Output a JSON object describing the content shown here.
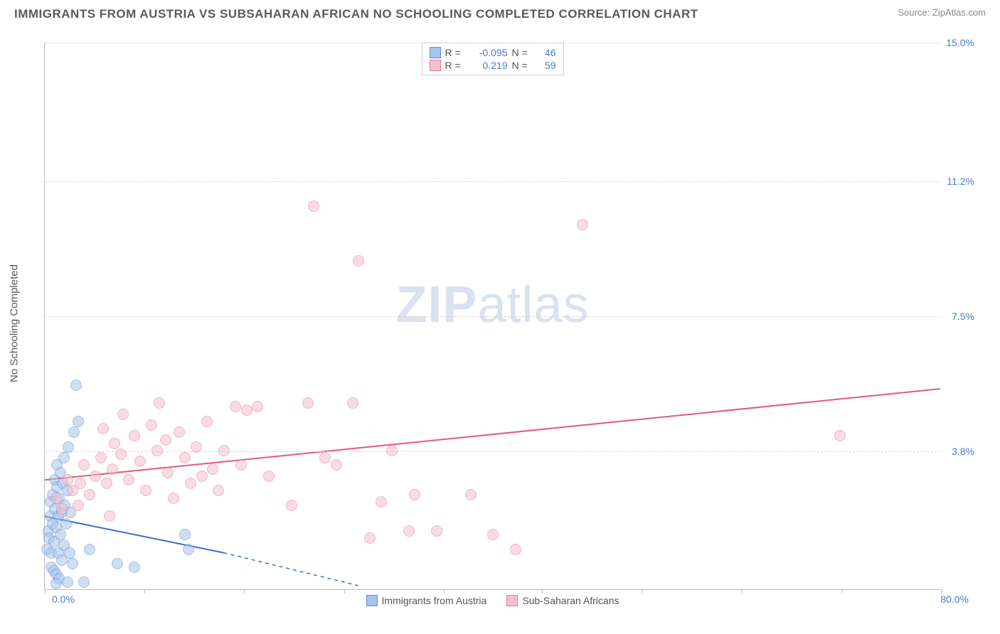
{
  "title": "IMMIGRANTS FROM AUSTRIA VS SUBSAHARAN AFRICAN NO SCHOOLING COMPLETED CORRELATION CHART",
  "source_label": "Source: ",
  "source_value": "ZipAtlas.com",
  "watermark_zip": "ZIP",
  "watermark_atlas": "atlas",
  "chart": {
    "type": "scatter",
    "ylabel": "No Schooling Completed",
    "xlim": [
      0,
      80
    ],
    "ylim": [
      0,
      15
    ],
    "xlim_labels": [
      "0.0%",
      "80.0%"
    ],
    "ytick_values": [
      3.8,
      7.5,
      11.2,
      15.0
    ],
    "ytick_labels": [
      "3.8%",
      "7.5%",
      "11.2%",
      "15.0%"
    ],
    "xtick_values": [
      0,
      8.9,
      17.8,
      26.7,
      35.6,
      44.4,
      53.3,
      62.2,
      71.1,
      80
    ],
    "background_color": "#ffffff",
    "grid_color": "#d8d8d8",
    "marker_radius": 8,
    "marker_opacity": 0.55,
    "series": [
      {
        "name": "Immigrants from Austria",
        "color_fill": "#a8c4ea",
        "color_stroke": "#5b8ed6",
        "R": "-0.095",
        "N": "46",
        "trend": {
          "x1": 0,
          "y1": 2.0,
          "x2": 16,
          "y2": 1.0,
          "dash_from_x": 16,
          "dash_to_x": 28,
          "dash_to_y": 0.1,
          "color": "#3a6fc7",
          "width": 2
        },
        "points": [
          [
            0.2,
            1.1
          ],
          [
            0.3,
            1.6
          ],
          [
            0.4,
            1.4
          ],
          [
            0.5,
            2.0
          ],
          [
            0.5,
            2.4
          ],
          [
            0.6,
            0.6
          ],
          [
            0.6,
            1.0
          ],
          [
            0.7,
            1.8
          ],
          [
            0.7,
            2.6
          ],
          [
            0.8,
            0.5
          ],
          [
            0.8,
            1.3
          ],
          [
            0.9,
            2.2
          ],
          [
            0.9,
            3.0
          ],
          [
            1.0,
            0.4
          ],
          [
            1.0,
            1.7
          ],
          [
            1.1,
            2.8
          ],
          [
            1.1,
            3.4
          ],
          [
            1.2,
            1.0
          ],
          [
            1.2,
            2.0
          ],
          [
            1.3,
            0.3
          ],
          [
            1.3,
            2.5
          ],
          [
            1.4,
            1.5
          ],
          [
            1.4,
            3.2
          ],
          [
            1.5,
            0.8
          ],
          [
            1.5,
            2.1
          ],
          [
            1.6,
            2.9
          ],
          [
            1.7,
            1.2
          ],
          [
            1.7,
            3.6
          ],
          [
            1.8,
            2.3
          ],
          [
            1.9,
            1.8
          ],
          [
            2.0,
            0.2
          ],
          [
            2.0,
            2.7
          ],
          [
            2.1,
            3.9
          ],
          [
            2.2,
            1.0
          ],
          [
            2.3,
            2.1
          ],
          [
            2.5,
            0.7
          ],
          [
            2.6,
            4.3
          ],
          [
            2.8,
            5.6
          ],
          [
            3.0,
            4.6
          ],
          [
            4.0,
            1.1
          ],
          [
            6.5,
            0.7
          ],
          [
            8.0,
            0.6
          ],
          [
            12.5,
            1.5
          ],
          [
            12.8,
            1.1
          ],
          [
            3.5,
            0.2
          ],
          [
            1.0,
            0.15
          ]
        ]
      },
      {
        "name": "Sub-Saharan Africans",
        "color_fill": "#f4c0cb",
        "color_stroke": "#e77a97",
        "R": "0.219",
        "N": "59",
        "trend": {
          "x1": 0,
          "y1": 3.0,
          "x2": 80,
          "y2": 5.5,
          "color": "#e05a7f",
          "width": 2
        },
        "points": [
          [
            1.0,
            2.5
          ],
          [
            1.5,
            2.2
          ],
          [
            2.0,
            3.0
          ],
          [
            2.5,
            2.7
          ],
          [
            3.0,
            2.3
          ],
          [
            3.2,
            2.9
          ],
          [
            3.5,
            3.4
          ],
          [
            4.0,
            2.6
          ],
          [
            4.5,
            3.1
          ],
          [
            5.0,
            3.6
          ],
          [
            5.2,
            4.4
          ],
          [
            5.5,
            2.9
          ],
          [
            6.0,
            3.3
          ],
          [
            6.2,
            4.0
          ],
          [
            6.8,
            3.7
          ],
          [
            7.0,
            4.8
          ],
          [
            7.5,
            3.0
          ],
          [
            8.0,
            4.2
          ],
          [
            8.5,
            3.5
          ],
          [
            9.0,
            2.7
          ],
          [
            9.5,
            4.5
          ],
          [
            10.0,
            3.8
          ],
          [
            10.2,
            5.1
          ],
          [
            10.8,
            4.1
          ],
          [
            11.0,
            3.2
          ],
          [
            11.5,
            2.5
          ],
          [
            12.0,
            4.3
          ],
          [
            12.5,
            3.6
          ],
          [
            13.0,
            2.9
          ],
          [
            13.5,
            3.9
          ],
          [
            14.0,
            3.1
          ],
          [
            14.5,
            4.6
          ],
          [
            15.0,
            3.3
          ],
          [
            15.5,
            2.7
          ],
          [
            16.0,
            3.8
          ],
          [
            17.0,
            5.0
          ],
          [
            17.5,
            3.4
          ],
          [
            18.0,
            4.9
          ],
          [
            19.0,
            5.0
          ],
          [
            20.0,
            3.1
          ],
          [
            22.0,
            2.3
          ],
          [
            23.5,
            5.1
          ],
          [
            24.0,
            10.5
          ],
          [
            25.0,
            3.6
          ],
          [
            26.0,
            3.4
          ],
          [
            27.5,
            5.1
          ],
          [
            28.0,
            9.0
          ],
          [
            29.0,
            1.4
          ],
          [
            30.0,
            2.4
          ],
          [
            31.0,
            3.8
          ],
          [
            32.5,
            1.6
          ],
          [
            33.0,
            2.6
          ],
          [
            35.0,
            1.6
          ],
          [
            38.0,
            2.6
          ],
          [
            40.0,
            1.5
          ],
          [
            42.0,
            1.1
          ],
          [
            48.0,
            10.0
          ],
          [
            71.0,
            4.2
          ],
          [
            5.8,
            2.0
          ]
        ]
      }
    ]
  },
  "legend": {
    "r_label": "R =",
    "n_label": "N ="
  }
}
